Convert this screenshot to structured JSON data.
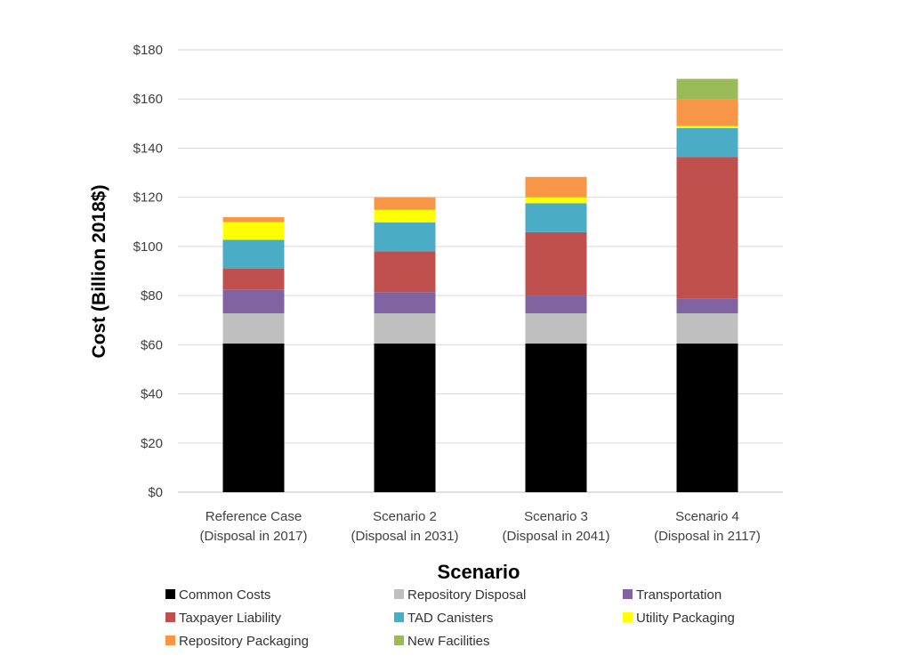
{
  "chart_data": {
    "type": "bar",
    "stacked": true,
    "title": "",
    "xlabel": "Scenario",
    "ylabel": "Cost (Billion 2018$)",
    "ylim": [
      0,
      180
    ],
    "yticks": [
      0,
      20,
      40,
      60,
      80,
      100,
      120,
      140,
      160,
      180
    ],
    "ytick_labels": [
      "$0",
      "$20",
      "$40",
      "$60",
      "$80",
      "$100",
      "$120",
      "$140",
      "$160",
      "$180"
    ],
    "grid": true,
    "legend_position": "bottom",
    "categories": [
      [
        "Reference Case",
        "(Disposal in 2017)"
      ],
      [
        "Scenario 2",
        "(Disposal in 2031)"
      ],
      [
        "Scenario 3",
        "(Disposal in 2041)"
      ],
      [
        "Scenario 4",
        "(Disposal in 2117)"
      ]
    ],
    "series": [
      {
        "name": "Common Costs",
        "color": "#000000",
        "values": [
          60.5,
          60.5,
          60.5,
          60.5
        ]
      },
      {
        "name": "Repository Disposal",
        "color": "#bfbfbf",
        "values": [
          12.3,
          12.3,
          12.3,
          12.3
        ]
      },
      {
        "name": "Transportation",
        "color": "#8064a2",
        "values": [
          9.7,
          8.6,
          7.2,
          6.1
        ]
      },
      {
        "name": "Taxpayer Liability",
        "color": "#c0504d",
        "values": [
          8.4,
          16.6,
          25.8,
          57.5
        ]
      },
      {
        "name": "TAD Canisters",
        "color": "#4bacc6",
        "values": [
          11.8,
          11.8,
          11.8,
          11.8
        ]
      },
      {
        "name": "Utility Packaging",
        "color": "#ffff00",
        "values": [
          7.2,
          5.1,
          2.4,
          0.8
        ]
      },
      {
        "name": "Repository Packaging",
        "color": "#f79646",
        "values": [
          2.0,
          5.1,
          8.3,
          10.8
        ]
      },
      {
        "name": "New Facilities",
        "color": "#9bbb59",
        "values": [
          0,
          0,
          0,
          8.4
        ]
      }
    ]
  }
}
